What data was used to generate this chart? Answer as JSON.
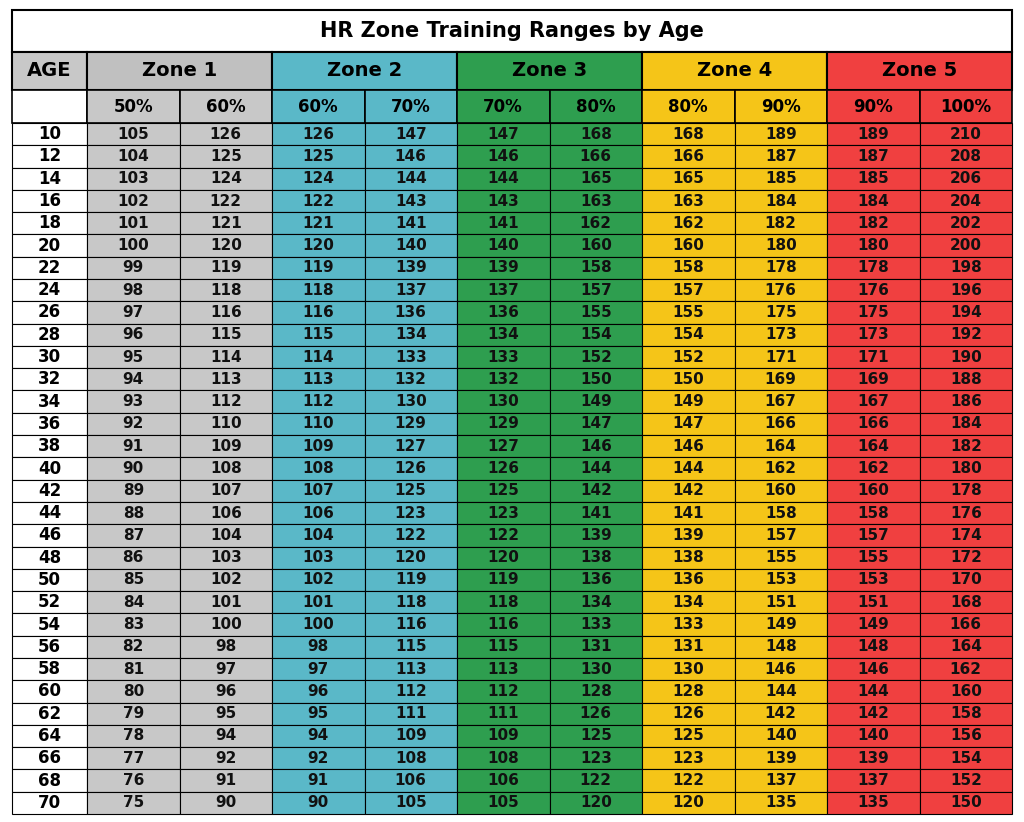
{
  "title": "HR Zone Training Ranges by Age",
  "ages": [
    10,
    12,
    14,
    16,
    18,
    20,
    22,
    24,
    26,
    28,
    30,
    32,
    34,
    36,
    38,
    40,
    42,
    44,
    46,
    48,
    50,
    52,
    54,
    56,
    58,
    60,
    62,
    64,
    66,
    68,
    70
  ],
  "zone_headers": [
    "Zone 1",
    "Zone 2",
    "Zone 3",
    "Zone 4",
    "Zone 5"
  ],
  "pct_headers": [
    "50%",
    "60%",
    "60%",
    "70%",
    "70%",
    "80%",
    "80%",
    "90%",
    "90%",
    "100%"
  ],
  "zone_colors": [
    "#c0c0c0",
    "#5ab8c8",
    "#2e9e4f",
    "#f5c518",
    "#f04040"
  ],
  "col_colors": [
    "#c8c8c8",
    "#c8c8c8",
    "#5ab8c8",
    "#5ab8c8",
    "#2e9e4f",
    "#2e9e4f",
    "#f5c518",
    "#f5c518",
    "#f04040",
    "#f04040"
  ],
  "data_50": [
    105,
    104,
    103,
    102,
    101,
    100,
    99,
    98,
    97,
    96,
    95,
    94,
    93,
    92,
    91,
    90,
    89,
    88,
    87,
    86,
    85,
    84,
    83,
    82,
    81,
    80,
    79,
    78,
    77,
    76,
    75
  ],
  "data_60a": [
    126,
    125,
    124,
    122,
    121,
    120,
    119,
    118,
    116,
    115,
    114,
    113,
    112,
    110,
    109,
    108,
    107,
    106,
    104,
    103,
    102,
    101,
    100,
    98,
    97,
    96,
    95,
    94,
    92,
    91,
    90
  ],
  "data_60b": [
    126,
    125,
    124,
    122,
    121,
    120,
    119,
    118,
    116,
    115,
    114,
    113,
    112,
    110,
    109,
    108,
    107,
    106,
    104,
    103,
    102,
    101,
    100,
    98,
    97,
    96,
    95,
    94,
    92,
    91,
    90
  ],
  "data_70a": [
    147,
    146,
    144,
    143,
    141,
    140,
    139,
    137,
    136,
    134,
    133,
    132,
    130,
    129,
    127,
    126,
    125,
    123,
    122,
    120,
    119,
    118,
    116,
    115,
    113,
    112,
    111,
    109,
    108,
    106,
    105
  ],
  "data_70b": [
    147,
    146,
    144,
    143,
    141,
    140,
    139,
    137,
    136,
    134,
    133,
    132,
    130,
    129,
    127,
    126,
    125,
    123,
    122,
    120,
    119,
    118,
    116,
    115,
    113,
    112,
    111,
    109,
    108,
    106,
    105
  ],
  "data_80a": [
    168,
    166,
    165,
    163,
    162,
    160,
    158,
    157,
    155,
    154,
    152,
    150,
    149,
    147,
    146,
    144,
    142,
    141,
    139,
    138,
    136,
    134,
    133,
    131,
    130,
    128,
    126,
    125,
    123,
    122,
    120
  ],
  "data_80b": [
    168,
    166,
    165,
    163,
    162,
    160,
    158,
    157,
    155,
    154,
    152,
    150,
    149,
    147,
    146,
    144,
    142,
    141,
    139,
    138,
    136,
    134,
    133,
    131,
    130,
    128,
    126,
    125,
    123,
    122,
    120
  ],
  "data_90a": [
    189,
    187,
    185,
    184,
    182,
    180,
    178,
    176,
    175,
    173,
    171,
    169,
    167,
    166,
    164,
    162,
    160,
    158,
    157,
    155,
    153,
    151,
    149,
    148,
    146,
    144,
    142,
    140,
    139,
    137,
    135
  ],
  "data_90b": [
    189,
    187,
    185,
    184,
    182,
    180,
    178,
    176,
    175,
    173,
    171,
    169,
    167,
    166,
    164,
    162,
    160,
    158,
    157,
    155,
    153,
    151,
    149,
    148,
    146,
    144,
    142,
    140,
    139,
    137,
    135
  ],
  "data_100": [
    210,
    208,
    206,
    204,
    202,
    200,
    198,
    196,
    194,
    192,
    190,
    188,
    186,
    184,
    182,
    180,
    178,
    176,
    174,
    172,
    170,
    168,
    166,
    164,
    162,
    160,
    158,
    156,
    154,
    152,
    150
  ],
  "title_fontsize": 15,
  "header_fontsize": 12,
  "data_fontsize": 11,
  "age_fontsize": 12
}
